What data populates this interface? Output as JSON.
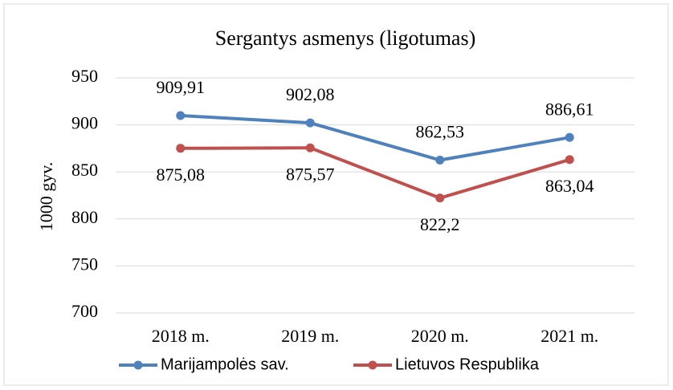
{
  "chart_data": {
    "type": "line",
    "title": "Sergantys asmenys (ligotumas)",
    "y_label": "1000 gyv.",
    "categories": [
      "2018 m.",
      "2019 m.",
      "2020 m.",
      "2021 m."
    ],
    "series": [
      {
        "name": "Marijampolės sav.",
        "color": "#4f81bd",
        "values": [
          909.91,
          902.08,
          862.53,
          886.61
        ],
        "value_labels": [
          "909,91",
          "902,08",
          "862,53",
          "886,61"
        ]
      },
      {
        "name": "Lietuvos Respublika",
        "color": "#c0504d",
        "values": [
          875.08,
          875.57,
          822.2,
          863.04
        ],
        "value_labels": [
          "875,08",
          "875,57",
          "822,2",
          "863,04"
        ]
      }
    ],
    "ylim": [
      700,
      950
    ],
    "yticks": [
      700,
      750,
      800,
      850,
      900,
      950
    ],
    "grid": true,
    "legend": "bottom"
  }
}
